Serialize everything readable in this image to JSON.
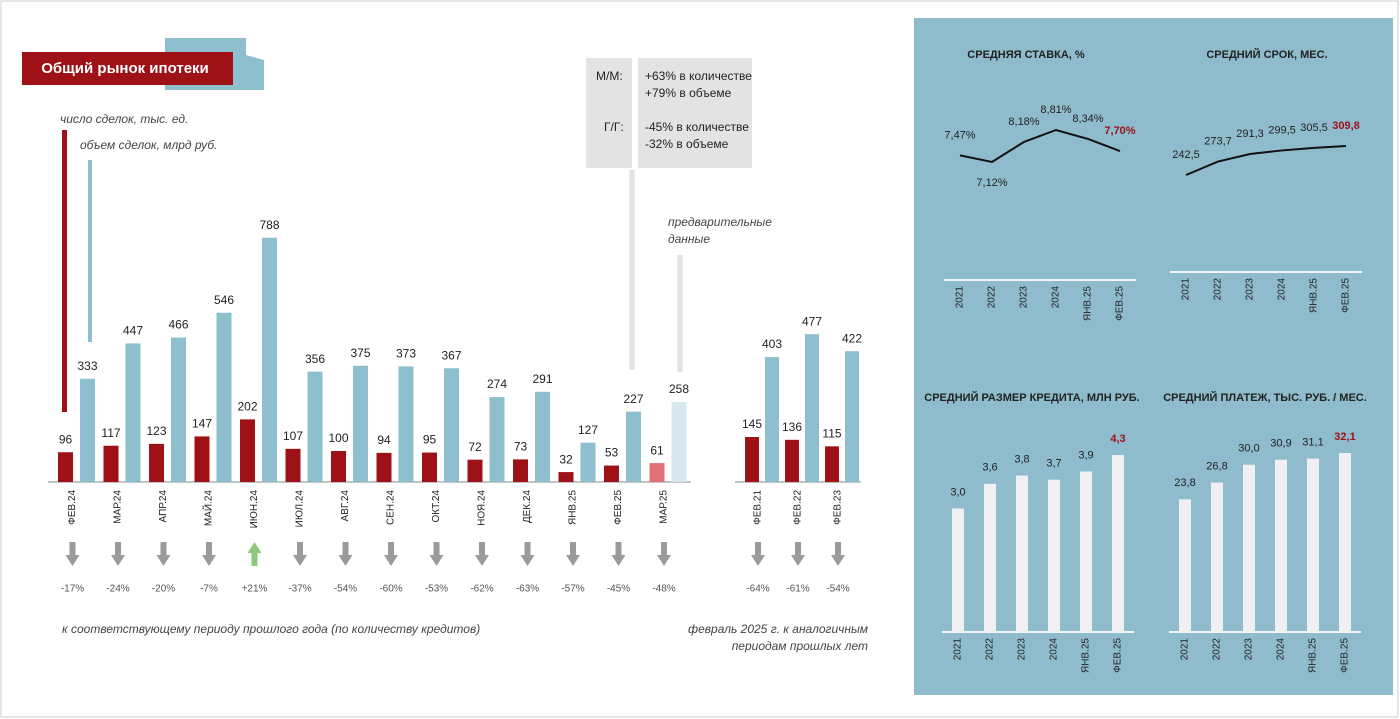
{
  "chart_data": [
    {
      "type": "bar",
      "title": "Общий рынок ипотеки",
      "categories": [
        "ФЕВ.24",
        "МАР.24",
        "АПР.24",
        "МАЙ.24",
        "ИЮН.24",
        "ИЮЛ.24",
        "АВГ.24",
        "СЕН.24",
        "ОКТ.24",
        "НОЯ.24",
        "ДЕК.24",
        "ЯНВ.25",
        "ФЕВ.25",
        "МАР.25"
      ],
      "series": [
        {
          "name": "число сделок, тыс. ед.",
          "color": "#9e1116",
          "values": [
            96,
            117,
            123,
            147,
            202,
            107,
            100,
            94,
            95,
            72,
            73,
            32,
            53,
            61
          ],
          "colors": [
            "#9e1116",
            "#9e1116",
            "#9e1116",
            "#9e1116",
            "#9e1116",
            "#9e1116",
            "#9e1116",
            "#9e1116",
            "#9e1116",
            "#9e1116",
            "#9e1116",
            "#9e1116",
            "#9e1116",
            "#e07275"
          ]
        },
        {
          "name": "объем сделок, млрд руб.",
          "color": "#8dbfcf",
          "values": [
            333,
            447,
            466,
            546,
            788,
            356,
            375,
            373,
            367,
            274,
            291,
            127,
            227,
            258
          ],
          "colors": [
            "#8dbfcf",
            "#8dbfcf",
            "#8dbfcf",
            "#8dbfcf",
            "#8dbfcf",
            "#8dbfcf",
            "#8dbfcf",
            "#8dbfcf",
            "#8dbfcf",
            "#8dbfcf",
            "#8dbfcf",
            "#8dbfcf",
            "#8dbfcf",
            "#d9e8ee"
          ]
        }
      ],
      "changes": {
        "values": [
          -17,
          -24,
          -20,
          -7,
          21,
          -37,
          -54,
          -60,
          -53,
          -62,
          -63,
          -57,
          -45,
          -48
        ],
        "value_labels": [
          "-17%",
          "-24%",
          "-20%",
          "-7%",
          "+21%",
          "-37%",
          "-54%",
          "-60%",
          "-53%",
          "-62%",
          "-63%",
          "-57%",
          "-45%",
          "-48%"
        ],
        "up_color": "#8cc97a",
        "down_color": "#9a9a9a"
      },
      "note": "к соответствующему периоду прошлого года (по количеству кредитов)",
      "annotation": [
        "предварительные",
        "данные"
      ],
      "mm_label": "М/М:",
      "mm_text": [
        "+63% в количестве",
        "+79% в объеме"
      ],
      "yy_label": "Г/Г:",
      "yy_text": [
        "-45% в количестве",
        "-32% в объеме"
      ]
    },
    {
      "type": "bar",
      "categories": [
        "ФЕВ.21",
        "ФЕВ.22",
        "ФЕВ.23"
      ],
      "series": [
        {
          "color": "#9e1116",
          "values": [
            145,
            136,
            115
          ],
          "colors": [
            "#9e1116",
            "#9e1116",
            "#9e1116"
          ]
        },
        {
          "color": "#8dbfcf",
          "values": [
            403,
            477,
            422
          ],
          "colors": [
            "#8dbfcf",
            "#8dbfcf",
            "#8dbfcf"
          ]
        }
      ],
      "changes": {
        "values": [
          -64,
          -61,
          -54
        ],
        "value_labels": [
          "-64%",
          "-61%",
          "-54%"
        ],
        "up_color": "#8cc97a",
        "down_color": "#9a9a9a"
      },
      "note": [
        "февраль 2025 г. к аналогичным",
        "периодам прошлых лет"
      ]
    },
    {
      "type": "line",
      "title": "СРЕДНЯЯ СТАВКА, %",
      "categories": [
        "2021",
        "2022",
        "2023",
        "2024",
        "ЯНВ.25",
        "ФЕВ.25"
      ],
      "values": [
        7.47,
        7.12,
        8.18,
        8.81,
        8.34,
        7.7
      ],
      "value_labels": [
        "7,47%",
        "7,12%",
        "8,18%",
        "8,81%",
        "8,34%",
        "7,70%"
      ],
      "color": "#111111",
      "highlight_color": "#9e1116"
    },
    {
      "type": "line",
      "title": "СРЕДНИЙ СРОК, МЕС.",
      "categories": [
        "2021",
        "2022",
        "2023",
        "2024",
        "ЯНВ.25",
        "ФЕВ.25"
      ],
      "values": [
        242.5,
        273.7,
        291.3,
        299.5,
        305.5,
        309.8
      ],
      "value_labels": [
        "242,5",
        "273,7",
        "291,3",
        "299,5",
        "305,5",
        "309,8"
      ],
      "color": "#111111",
      "highlight_color": "#9e1116"
    },
    {
      "type": "column",
      "title": "СРЕДНИЙ РАЗМЕР КРЕДИТА, МЛН  РУБ.",
      "categories": [
        "2021",
        "2022",
        "2023",
        "2024",
        "ЯНВ.25",
        "ФЕВ.25"
      ],
      "values": [
        3.0,
        3.6,
        3.8,
        3.7,
        3.9,
        4.3
      ],
      "value_labels": [
        "3,0",
        "3,6",
        "3,8",
        "3,7",
        "3,9",
        "4,3"
      ],
      "color": "#f0f0f0",
      "highlight_color": "#9e1116"
    },
    {
      "type": "column",
      "title": "СРЕДНИЙ ПЛАТЕЖ, ТЫС. РУБ. / МЕС.",
      "categories": [
        "2021",
        "2022",
        "2023",
        "2024",
        "ЯНВ.25",
        "ФЕВ.25"
      ],
      "values": [
        23.8,
        26.8,
        30.0,
        30.9,
        31.1,
        32.1
      ],
      "value_labels": [
        "23,8",
        "26,8",
        "30,0",
        "30,9",
        "31,1",
        "32,1"
      ],
      "color": "#f0f0f0",
      "highlight_color": "#9e1116"
    }
  ]
}
